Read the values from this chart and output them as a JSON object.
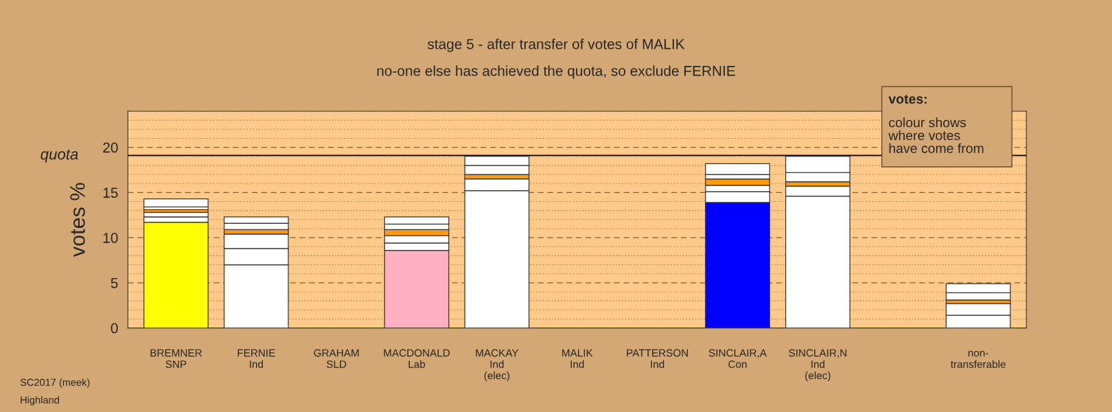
{
  "chart_data": {
    "type": "bar",
    "stacked": true,
    "title": "stage 5 - after transfer of votes of MALIK",
    "subtitle": "no-one else has achieved the quota, so exclude FERNIE",
    "ylabel": "votes %",
    "categories": [
      "BREMNER\nSNP",
      "FERNIE\nInd",
      "GRAHAM\nSLD",
      "MACDONALD\nLab",
      "MACKAY\nInd\n(elec)",
      "MALIK\nInd",
      "PATTERSON\nInd",
      "SINCLAIR,A\nCon",
      "SINCLAIR,N\nInd\n(elec)",
      null,
      "non-\ntransferable"
    ],
    "series": [
      {
        "colors": [
          "#ffff00",
          "#ffffff",
          "#ffffff",
          "#ffb0c0",
          "#ffffff",
          "#ffffff",
          "#ffffff",
          "#0000ff",
          "#ffffff",
          "#ffffff",
          "#ffffff"
        ],
        "values": [
          11.7,
          7.0,
          null,
          8.6,
          15.2,
          null,
          null,
          13.9,
          14.6,
          null,
          1.4
        ]
      },
      {
        "color": "#ffffff",
        "values": [
          0.6,
          1.8,
          null,
          0.8,
          1.3,
          null,
          null,
          1.2,
          1.1,
          null,
          1.3
        ]
      },
      {
        "colors": [
          "#ffffff",
          "#ffffff",
          "#ffffff",
          "#ffffff",
          "#ff9a10",
          "#ffffff",
          "#ffffff",
          "#ffffff",
          "#ff9a10",
          "#ffffff",
          "#ff9a10"
        ],
        "values": [
          0.5,
          1.6,
          null,
          0.8,
          0.5,
          null,
          null,
          0.7,
          0.5,
          null,
          0.4
        ]
      },
      {
        "colors": [
          "#ff9a10",
          "#ff9a10",
          "#ffffff",
          "#ff9a10",
          "#ffffff",
          "#ffffff",
          "#ffffff",
          "#ff9a10",
          "#ffffff",
          "#ffffff",
          "#ffffff"
        ],
        "values": [
          0.3,
          0.5,
          null,
          0.7,
          1.0,
          null,
          null,
          0.7,
          1.0,
          null,
          0.8
        ]
      },
      {
        "color": "#ffffff",
        "values": [
          0.3,
          0.7,
          null,
          0.6,
          1.0,
          null,
          null,
          0.5,
          1.8,
          null,
          1.0
        ]
      },
      {
        "color": "#ffffff",
        "values": [
          0.9,
          0.7,
          null,
          0.8,
          null,
          null,
          null,
          1.2,
          null,
          null,
          null
        ]
      }
    ],
    "ylim": [
      0,
      24
    ],
    "yticks": [
      0,
      {
        "value": 1,
        "label": null
      },
      {
        "value": 2,
        "label": null
      },
      {
        "value": 3,
        "label": null
      },
      {
        "value": 4,
        "label": null
      },
      5,
      {
        "value": 6,
        "label": null
      },
      {
        "value": 7,
        "label": null
      },
      {
        "value": 8,
        "label": null
      },
      {
        "value": 9,
        "label": null
      },
      10,
      {
        "value": 11,
        "label": null
      },
      {
        "value": 12,
        "label": null
      },
      {
        "value": 13,
        "label": null
      },
      {
        "value": 14,
        "label": null
      },
      15,
      {
        "value": 16,
        "label": null
      },
      {
        "value": 17,
        "label": null
      },
      {
        "value": 18,
        "label": null
      },
      {
        "value": 19,
        "label": null
      },
      20,
      {
        "value": 21,
        "label": null
      },
      {
        "value": 22,
        "label": null
      },
      {
        "value": 23,
        "label": null
      },
      {
        "value": 24,
        "label": null
      }
    ],
    "grid": "y",
    "ref_lines": [
      {
        "axis": "y",
        "value": 19.1,
        "label": "quota",
        "color": "#000000",
        "line_style": "solid"
      }
    ],
    "annotations": [
      "votes:",
      "colour shows\nwhere votes\nhave come from",
      "SC2017 (meek)",
      "Highland"
    ]
  }
}
